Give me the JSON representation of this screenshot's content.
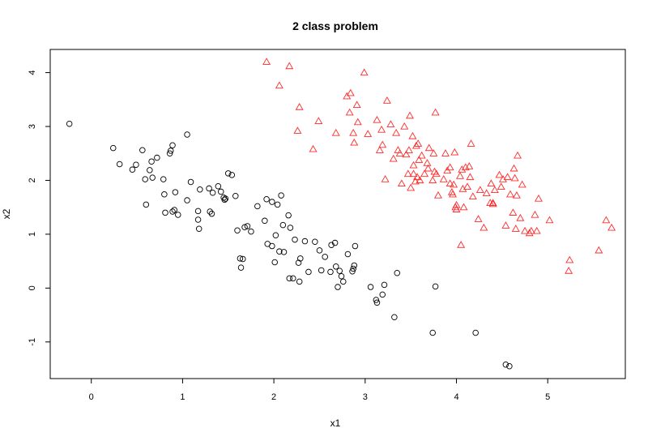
{
  "colors": {
    "class1": "#000000",
    "class2": "#ff2a2a",
    "axis": "#000000",
    "background": "#ffffff"
  },
  "chart_data": {
    "type": "scatter",
    "title": "2 class problem",
    "xlabel": "x1",
    "ylabel": "x2",
    "xlim": [
      -0.45,
      5.85
    ],
    "ylim": [
      -1.68,
      4.43
    ],
    "xticks": [
      0,
      1,
      2,
      3,
      4,
      5
    ],
    "yticks": [
      -1,
      0,
      1,
      2,
      3,
      4
    ],
    "grid": false,
    "legend": "none",
    "series": [
      {
        "marker": "circle",
        "color": "#000000",
        "points": [
          [
            -0.24,
            3.05
          ],
          [
            0.24,
            2.6
          ],
          [
            0.31,
            2.3
          ],
          [
            0.45,
            2.2
          ],
          [
            0.49,
            2.29
          ],
          [
            0.56,
            2.56
          ],
          [
            0.59,
            2.02
          ],
          [
            0.6,
            1.55
          ],
          [
            0.64,
            2.19
          ],
          [
            0.66,
            2.35
          ],
          [
            0.67,
            2.05
          ],
          [
            0.72,
            2.42
          ],
          [
            0.79,
            2.02
          ],
          [
            0.8,
            1.74
          ],
          [
            0.81,
            1.4
          ],
          [
            0.86,
            2.5
          ],
          [
            0.87,
            2.55
          ],
          [
            0.89,
            2.65
          ],
          [
            0.89,
            1.42
          ],
          [
            0.91,
            1.45
          ],
          [
            0.92,
            1.78
          ],
          [
            0.95,
            1.36
          ],
          [
            1.05,
            2.85
          ],
          [
            1.05,
            1.63
          ],
          [
            1.09,
            1.97
          ],
          [
            1.17,
            1.43
          ],
          [
            1.17,
            1.27
          ],
          [
            1.18,
            1.1
          ],
          [
            1.19,
            1.83
          ],
          [
            1.29,
            1.85
          ],
          [
            1.3,
            1.42
          ],
          [
            1.32,
            1.38
          ],
          [
            1.33,
            1.77
          ],
          [
            1.39,
            1.89
          ],
          [
            1.42,
            1.79
          ],
          [
            1.45,
            1.68
          ],
          [
            1.46,
            1.64
          ],
          [
            1.47,
            1.66
          ],
          [
            1.5,
            2.13
          ],
          [
            1.54,
            2.1
          ],
          [
            1.58,
            1.71
          ],
          [
            1.6,
            1.07
          ],
          [
            1.63,
            0.55
          ],
          [
            1.64,
            0.38
          ],
          [
            1.66,
            0.54
          ],
          [
            1.68,
            1.13
          ],
          [
            1.71,
            1.15
          ],
          [
            1.75,
            1.05
          ],
          [
            1.82,
            1.52
          ],
          [
            1.9,
            1.25
          ],
          [
            1.92,
            1.65
          ],
          [
            1.93,
            0.82
          ],
          [
            1.98,
            0.78
          ],
          [
            1.98,
            1.6
          ],
          [
            2.01,
            0.48
          ],
          [
            2.02,
            0.98
          ],
          [
            2.04,
            1.55
          ],
          [
            2.06,
            0.68
          ],
          [
            2.08,
            1.72
          ],
          [
            2.1,
            1.17
          ],
          [
            2.11,
            0.67
          ],
          [
            2.16,
            1.35
          ],
          [
            2.17,
            0.18
          ],
          [
            2.18,
            1.12
          ],
          [
            2.21,
            0.18
          ],
          [
            2.23,
            0.9
          ],
          [
            2.27,
            0.47
          ],
          [
            2.28,
            0.12
          ],
          [
            2.29,
            0.55
          ],
          [
            2.34,
            0.87
          ],
          [
            2.38,
            0.3
          ],
          [
            2.45,
            0.86
          ],
          [
            2.5,
            0.7
          ],
          [
            2.52,
            0.33
          ],
          [
            2.56,
            0.58
          ],
          [
            2.62,
            0.3
          ],
          [
            2.63,
            0.8
          ],
          [
            2.67,
            0.84
          ],
          [
            2.68,
            0.4
          ],
          [
            2.7,
            0.02
          ],
          [
            2.72,
            0.32
          ],
          [
            2.74,
            0.22
          ],
          [
            2.76,
            0.12
          ],
          [
            2.81,
            0.63
          ],
          [
            2.86,
            0.31
          ],
          [
            2.87,
            0.36
          ],
          [
            2.88,
            0.42
          ],
          [
            2.89,
            0.78
          ],
          [
            3.06,
            0.02
          ],
          [
            3.12,
            -0.22
          ],
          [
            3.13,
            -0.27
          ],
          [
            3.19,
            -0.12
          ],
          [
            3.21,
            0.06
          ],
          [
            3.32,
            -0.54
          ],
          [
            3.35,
            0.28
          ],
          [
            3.74,
            -0.83
          ],
          [
            3.77,
            0.03
          ],
          [
            4.21,
            -0.83
          ],
          [
            4.54,
            -1.42
          ],
          [
            4.58,
            -1.45
          ]
        ]
      },
      {
        "marker": "triangle",
        "color": "#ff2a2a",
        "points": [
          [
            1.92,
            4.2
          ],
          [
            2.06,
            3.76
          ],
          [
            2.17,
            4.12
          ],
          [
            2.26,
            2.92
          ],
          [
            2.28,
            3.36
          ],
          [
            2.43,
            2.58
          ],
          [
            2.49,
            3.1
          ],
          [
            2.68,
            2.88
          ],
          [
            2.8,
            3.56
          ],
          [
            2.83,
            3.26
          ],
          [
            2.84,
            3.62
          ],
          [
            2.87,
            2.88
          ],
          [
            2.88,
            2.7
          ],
          [
            2.91,
            3.4
          ],
          [
            2.92,
            3.08
          ],
          [
            2.99,
            4.0
          ],
          [
            3.03,
            2.86
          ],
          [
            3.13,
            3.12
          ],
          [
            3.16,
            2.56
          ],
          [
            3.18,
            2.94
          ],
          [
            3.19,
            2.66
          ],
          [
            3.22,
            2.02
          ],
          [
            3.24,
            3.48
          ],
          [
            3.28,
            3.04
          ],
          [
            3.31,
            2.4
          ],
          [
            3.34,
            2.88
          ],
          [
            3.36,
            2.56
          ],
          [
            3.38,
            2.5
          ],
          [
            3.4,
            1.94
          ],
          [
            3.43,
            3.0
          ],
          [
            3.45,
            2.48
          ],
          [
            3.47,
            2.12
          ],
          [
            3.48,
            2.56
          ],
          [
            3.49,
            3.2
          ],
          [
            3.5,
            1.86
          ],
          [
            3.52,
            2.82
          ],
          [
            3.53,
            2.12
          ],
          [
            3.53,
            2.28
          ],
          [
            3.55,
            1.98
          ],
          [
            3.56,
            2.64
          ],
          [
            3.57,
            2.06
          ],
          [
            3.58,
            2.68
          ],
          [
            3.59,
            2.38
          ],
          [
            3.6,
            2.0
          ],
          [
            3.62,
            2.46
          ],
          [
            3.65,
            2.12
          ],
          [
            3.68,
            2.32
          ],
          [
            3.69,
            2.22
          ],
          [
            3.7,
            2.6
          ],
          [
            3.74,
            2.0
          ],
          [
            3.75,
            2.5
          ],
          [
            3.76,
            2.16
          ],
          [
            3.77,
            3.26
          ],
          [
            3.78,
            2.12
          ],
          [
            3.8,
            1.72
          ],
          [
            3.86,
            2.02
          ],
          [
            3.88,
            2.5
          ],
          [
            3.9,
            2.18
          ],
          [
            3.93,
            1.94
          ],
          [
            3.93,
            2.24
          ],
          [
            3.95,
            1.78
          ],
          [
            3.96,
            1.74
          ],
          [
            3.97,
            1.92
          ],
          [
            3.98,
            2.52
          ],
          [
            3.99,
            1.5
          ],
          [
            4.0,
            1.46
          ],
          [
            4.0,
            1.54
          ],
          [
            4.04,
            2.08
          ],
          [
            4.05,
            0.8
          ],
          [
            4.06,
            2.2
          ],
          [
            4.07,
            1.84
          ],
          [
            4.08,
            1.5
          ],
          [
            4.1,
            2.24
          ],
          [
            4.12,
            1.88
          ],
          [
            4.14,
            2.26
          ],
          [
            4.15,
            2.06
          ],
          [
            4.16,
            2.68
          ],
          [
            4.18,
            1.7
          ],
          [
            4.24,
            1.28
          ],
          [
            4.26,
            1.82
          ],
          [
            4.3,
            1.12
          ],
          [
            4.33,
            1.76
          ],
          [
            4.37,
            1.58
          ],
          [
            4.38,
            1.94
          ],
          [
            4.4,
            1.58
          ],
          [
            4.4,
            1.56
          ],
          [
            4.42,
            1.82
          ],
          [
            4.47,
            2.1
          ],
          [
            4.49,
            1.88
          ],
          [
            4.51,
            2.02
          ],
          [
            4.54,
            1.16
          ],
          [
            4.56,
            2.06
          ],
          [
            4.59,
            1.74
          ],
          [
            4.62,
            1.4
          ],
          [
            4.63,
            2.22
          ],
          [
            4.64,
            2.04
          ],
          [
            4.65,
            1.1
          ],
          [
            4.66,
            1.72
          ],
          [
            4.67,
            2.46
          ],
          [
            4.7,
            1.3
          ],
          [
            4.72,
            1.92
          ],
          [
            4.75,
            1.06
          ],
          [
            4.8,
            1.02
          ],
          [
            4.82,
            1.06
          ],
          [
            4.86,
            1.36
          ],
          [
            4.88,
            1.06
          ],
          [
            4.9,
            1.66
          ],
          [
            5.02,
            1.26
          ],
          [
            5.23,
            0.32
          ],
          [
            5.24,
            0.52
          ],
          [
            5.56,
            0.7
          ],
          [
            5.64,
            1.26
          ],
          [
            5.7,
            1.12
          ]
        ]
      }
    ]
  }
}
